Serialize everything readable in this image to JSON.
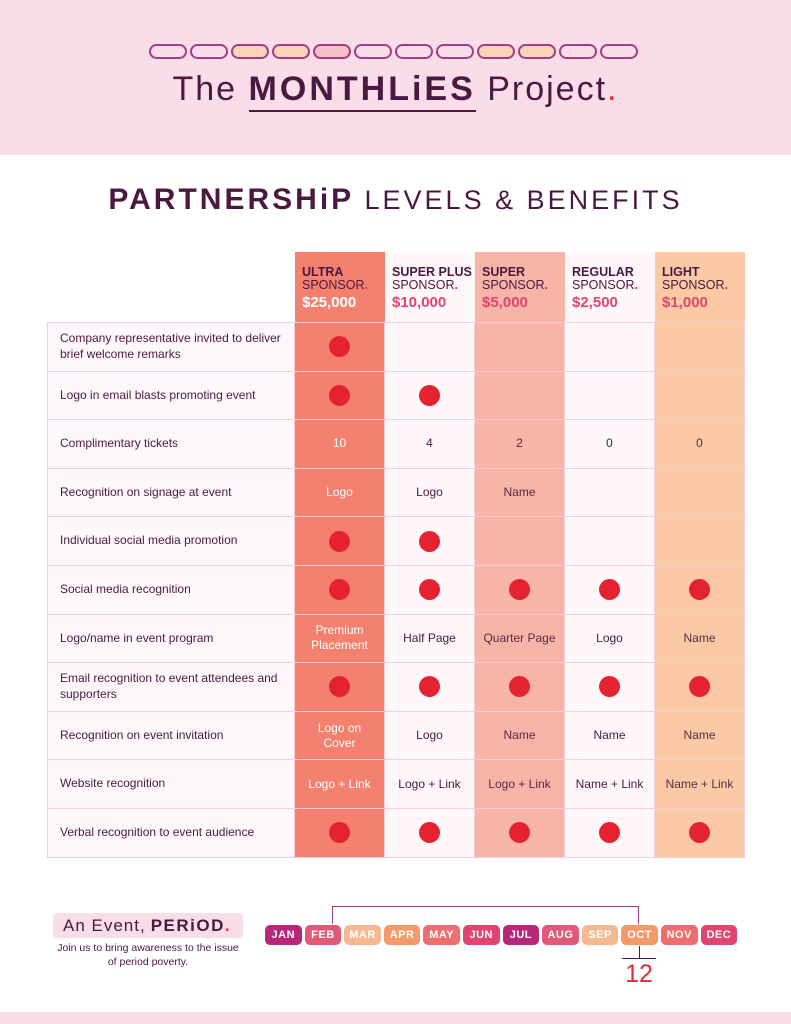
{
  "header": {
    "brand_the": "The",
    "brand_main": "MONTHLiES",
    "brand_project": "Project",
    "brand_dot": ".",
    "pill_colors": [
      "#f9dde8",
      "#f9dde8",
      "#fbd3b6",
      "#fbd3b6",
      "#f6c0c6",
      "#f9dde8",
      "#f9dde8",
      "#f9dde8",
      "#fbd3b6",
      "#fbd3b6",
      "#f9dde8",
      "#f9dde8"
    ]
  },
  "title": {
    "bold": "PARTNERSHiP",
    "light": "LEVELS & BENEFITS"
  },
  "tiers": [
    {
      "name1": "ULTRA",
      "name2": "SPONSOR",
      "price": "$25,000",
      "color": "#f4806f"
    },
    {
      "name1": "SUPER PLUS",
      "name2": "SPONSOR",
      "price": "$10,000",
      "color": "#fff7f9"
    },
    {
      "name1": "SUPER",
      "name2": "SPONSOR",
      "price": "$5,000",
      "color": "#f8b4a6"
    },
    {
      "name1": "REGULAR",
      "name2": "SPONSOR",
      "price": "$2,500",
      "color": "#fff7f9"
    },
    {
      "name1": "LIGHT",
      "name2": "SPONSOR",
      "price": "$1,000",
      "color": "#fbc9a4"
    }
  ],
  "benefits": [
    {
      "label": "Company representative invited to deliver brief welcome remarks",
      "cells": [
        "dot",
        "",
        "",
        "",
        ""
      ]
    },
    {
      "label": "Logo in email blasts promoting event",
      "cells": [
        "dot",
        "dot",
        "",
        "",
        ""
      ]
    },
    {
      "label": "Complimentary tickets",
      "cells": [
        "10",
        "4",
        "2",
        "0",
        "0"
      ]
    },
    {
      "label": "Recognition on signage at event",
      "cells": [
        "Logo",
        "Logo",
        "Name",
        "",
        ""
      ]
    },
    {
      "label": "Individual social media promotion",
      "cells": [
        "dot",
        "dot",
        "",
        "",
        ""
      ]
    },
    {
      "label": "Social media recognition",
      "cells": [
        "dot",
        "dot",
        "dot",
        "dot",
        "dot"
      ]
    },
    {
      "label": "Logo/name in event program",
      "cells": [
        "Premium Placement",
        "Half Page",
        "Quarter Page",
        "Logo",
        "Name"
      ]
    },
    {
      "label": "Email recognition to event attendees and supporters",
      "cells": [
        "dot",
        "dot",
        "dot",
        "dot",
        "dot"
      ]
    },
    {
      "label": "Recognition on event invitation",
      "cells": [
        "Logo on Cover",
        "Logo",
        "Name",
        "Name",
        "Name"
      ]
    },
    {
      "label": "Website recognition",
      "cells": [
        "Logo + Link",
        "Logo + Link",
        "Logo + Link",
        "Name + Link",
        "Name + Link"
      ]
    },
    {
      "label": "Verbal recognition to event audience",
      "cells": [
        "dot",
        "dot",
        "dot",
        "dot",
        "dot"
      ]
    }
  ],
  "footer": {
    "event_light": "An Event,",
    "event_bold": "PERiOD",
    "event_dot": ".",
    "tagline": "Join us to bring awareness to the issue of period poverty.",
    "months": [
      {
        "label": "JAN",
        "color": "#b8267a"
      },
      {
        "label": "FEB",
        "color": "#e05a77"
      },
      {
        "label": "MAR",
        "color": "#f6b88e"
      },
      {
        "label": "APR",
        "color": "#f29a6a"
      },
      {
        "label": "MAY",
        "color": "#ef6d6d"
      },
      {
        "label": "JUN",
        "color": "#e0456f"
      },
      {
        "label": "JUL",
        "color": "#b8267a"
      },
      {
        "label": "AUG",
        "color": "#e05a77"
      },
      {
        "label": "SEP",
        "color": "#f6b88e"
      },
      {
        "label": "OCT",
        "color": "#f29a6a"
      },
      {
        "label": "NOV",
        "color": "#ef6d6d"
      },
      {
        "label": "DEC",
        "color": "#e0456f"
      }
    ],
    "day": "12"
  }
}
